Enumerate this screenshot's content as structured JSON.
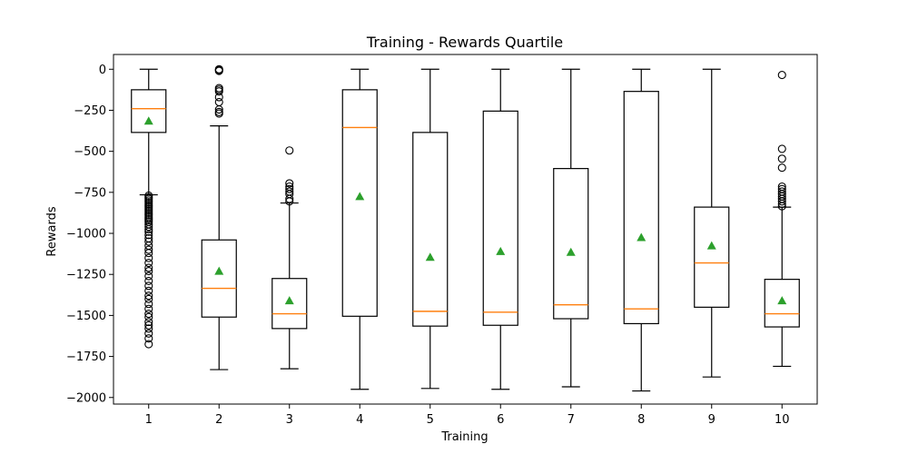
{
  "chart_data": {
    "type": "box",
    "title": "Training - Rewards Quartile",
    "xlabel": "Training",
    "ylabel": "Rewards",
    "categories": [
      "1",
      "2",
      "3",
      "4",
      "5",
      "6",
      "7",
      "8",
      "9",
      "10"
    ],
    "ylim": [
      -2040,
      90
    ],
    "yticks": [
      0,
      -250,
      -500,
      -750,
      -1000,
      -1250,
      -1500,
      -1750,
      -2000
    ],
    "ytick_labels": [
      "0",
      "−250",
      "−500",
      "−750",
      "−1000",
      "−1250",
      "−1500",
      "−1750",
      "−2000"
    ],
    "grid": false,
    "colors": {
      "box": "#000000",
      "median": "#ff7f0e",
      "mean": "#2ca02c"
    },
    "boxes": [
      {
        "label": "1",
        "whislo": -765,
        "q1": -385,
        "med": -240,
        "q3": -125,
        "whishi": 0,
        "mean": -315,
        "fliers": [
          -770,
          -780,
          -790,
          -800,
          -810,
          -820,
          -830,
          -840,
          -850,
          -860,
          -870,
          -880,
          -890,
          -900,
          -910,
          -920,
          -930,
          -945,
          -960,
          -975,
          -990,
          -1010,
          -1030,
          -1050,
          -1075,
          -1100,
          -1120,
          -1150,
          -1180,
          -1210,
          -1230,
          -1260,
          -1290,
          -1320,
          -1350,
          -1380,
          -1400,
          -1430,
          -1460,
          -1490,
          -1510,
          -1540,
          -1560,
          -1580,
          -1610,
          -1640,
          -1675
        ]
      },
      {
        "label": "2",
        "whislo": -1830,
        "q1": -1510,
        "med": -1335,
        "q3": -1040,
        "whishi": -345,
        "mean": -1230,
        "fliers": [
          0,
          -5,
          -10,
          -115,
          -125,
          -135,
          -170,
          -200,
          -245,
          -260,
          -270
        ]
      },
      {
        "label": "3",
        "whislo": -1825,
        "q1": -1580,
        "med": -1490,
        "q3": -1275,
        "whishi": -815,
        "mean": -1410,
        "fliers": [
          -495,
          -695,
          -715,
          -730,
          -745,
          -760,
          -790,
          -805
        ]
      },
      {
        "label": "4",
        "whislo": -1950,
        "q1": -1505,
        "med": -355,
        "q3": -125,
        "whishi": 0,
        "mean": -775,
        "fliers": []
      },
      {
        "label": "5",
        "whislo": -1945,
        "q1": -1565,
        "med": -1475,
        "q3": -385,
        "whishi": 0,
        "mean": -1145,
        "fliers": []
      },
      {
        "label": "6",
        "whislo": -1950,
        "q1": -1560,
        "med": -1480,
        "q3": -255,
        "whishi": 0,
        "mean": -1110,
        "fliers": []
      },
      {
        "label": "7",
        "whislo": -1935,
        "q1": -1520,
        "med": -1435,
        "q3": -605,
        "whishi": 0,
        "mean": -1115,
        "fliers": []
      },
      {
        "label": "8",
        "whislo": -1960,
        "q1": -1550,
        "med": -1460,
        "q3": -135,
        "whishi": 0,
        "mean": -1025,
        "fliers": []
      },
      {
        "label": "9",
        "whislo": -1875,
        "q1": -1450,
        "med": -1180,
        "q3": -840,
        "whishi": 0,
        "mean": -1075,
        "fliers": []
      },
      {
        "label": "10",
        "whislo": -1810,
        "q1": -1570,
        "med": -1490,
        "q3": -1280,
        "whishi": -840,
        "mean": -1410,
        "fliers": [
          -35,
          -485,
          -545,
          -600,
          -715,
          -730,
          -745,
          -760,
          -775,
          -790,
          -805,
          -820,
          -835
        ]
      }
    ]
  }
}
